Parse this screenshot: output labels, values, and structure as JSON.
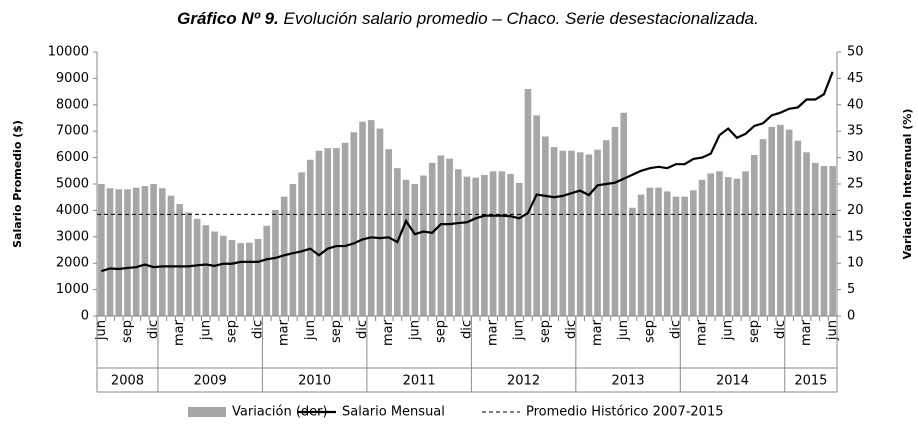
{
  "chart_data": {
    "type": "bar-line",
    "title": "Gráfico Nº 9.",
    "subtitle": "Evolución salario promedio – Chaco. Serie desestacionalizada.",
    "y_label": "Salario Promedio ($)",
    "y2_label": "Variación Interanual (%)",
    "categories": [
      "jun",
      null,
      null,
      "sep",
      null,
      null,
      "dic",
      null,
      null,
      "mar",
      null,
      null,
      "jun",
      null,
      null,
      "sep",
      null,
      null,
      "dic",
      null,
      null,
      "mar",
      null,
      null,
      "jun",
      null,
      null,
      "sep",
      null,
      null,
      "dic",
      null,
      null,
      "mar",
      null,
      null,
      "jun",
      null,
      null,
      "sep",
      null,
      null,
      "dic",
      null,
      null,
      "mar",
      null,
      null,
      "jun",
      null,
      null,
      "sep",
      null,
      null,
      "dic",
      null,
      null,
      "mar",
      null,
      null,
      "jun",
      null,
      null,
      "sep",
      null,
      null,
      "dic",
      null,
      null,
      "mar",
      null,
      null,
      "jun",
      null,
      null,
      "sep",
      null,
      null,
      "dic",
      null,
      null,
      "mar",
      null,
      null,
      "jun"
    ],
    "groups": [
      {
        "label": "2008",
        "count": 7
      },
      {
        "label": "2009",
        "count": 12
      },
      {
        "label": "2010",
        "count": 12
      },
      {
        "label": "2011",
        "count": 12
      },
      {
        "label": "2012",
        "count": 12
      },
      {
        "label": "2013",
        "count": 12
      },
      {
        "label": "2014",
        "count": 12
      },
      {
        "label": "2015",
        "count": 6
      }
    ],
    "series": [
      {
        "name": "Variación (der)",
        "type": "bar",
        "axis": "y2",
        "color": "#a6a6a6",
        "values": [
          25,
          24.2,
          24,
          24,
          24.3,
          24.6,
          25,
          24.2,
          22.8,
          21.2,
          19.6,
          18.4,
          17.2,
          16,
          15.2,
          14.4,
          13.8,
          13.9,
          14.6,
          17.1,
          20.1,
          22.6,
          25,
          27.2,
          29.6,
          31.3,
          31.8,
          31.8,
          32.8,
          34.8,
          36.8,
          37.1,
          35.5,
          31.6,
          28,
          25.8,
          25,
          26.6,
          29,
          30.4,
          29.8,
          27.8,
          26.4,
          26.2,
          26.7,
          27.4,
          27.4,
          26.9,
          25.2,
          43,
          38,
          34,
          32,
          31.3,
          31.3,
          31,
          30.6,
          31.5,
          33.3,
          35.8,
          38.5,
          20.5,
          23,
          24.3,
          24.3,
          23.6,
          22.6,
          22.6,
          23.8,
          25.8,
          27,
          27.4,
          26.3,
          26,
          27.4,
          30.5,
          33.5,
          35.8,
          36.2,
          35.3,
          33.2,
          31,
          29,
          28.4,
          28.4
        ]
      },
      {
        "name": "Salario Mensual",
        "type": "line",
        "color": "#000000",
        "values": [
          1700,
          1800,
          1780,
          1820,
          1850,
          1950,
          1850,
          1880,
          1880,
          1880,
          1880,
          1920,
          1950,
          1900,
          1980,
          1980,
          2050,
          2050,
          2050,
          2150,
          2200,
          2300,
          2380,
          2450,
          2550,
          2300,
          2550,
          2650,
          2650,
          2750,
          2900,
          2980,
          2950,
          2980,
          2800,
          3600,
          3100,
          3200,
          3150,
          3480,
          3480,
          3520,
          3550,
          3700,
          3800,
          3800,
          3800,
          3780,
          3700,
          3900,
          4600,
          4550,
          4500,
          4550,
          4650,
          4750,
          4580,
          4950,
          5000,
          5050,
          5200,
          5350,
          5500,
          5600,
          5650,
          5600,
          5750,
          5750,
          5950,
          6000,
          6150,
          6850,
          7100,
          6750,
          6900,
          7200,
          7300,
          7600,
          7700,
          7850,
          7900,
          8200,
          8200,
          8400,
          9250
        ]
      },
      {
        "name": "Promedio Histórico 2007-2015",
        "type": "hline",
        "color": "#000000",
        "value": 3850
      }
    ],
    "ylim": [
      0,
      10000
    ],
    "yticks": [
      0,
      1000,
      2000,
      3000,
      4000,
      5000,
      6000,
      7000,
      8000,
      9000,
      10000
    ],
    "y2lim": [
      0,
      50
    ],
    "y2ticks": [
      0,
      5,
      10,
      15,
      20,
      25,
      30,
      35,
      40,
      45,
      50
    ],
    "grid": false
  }
}
